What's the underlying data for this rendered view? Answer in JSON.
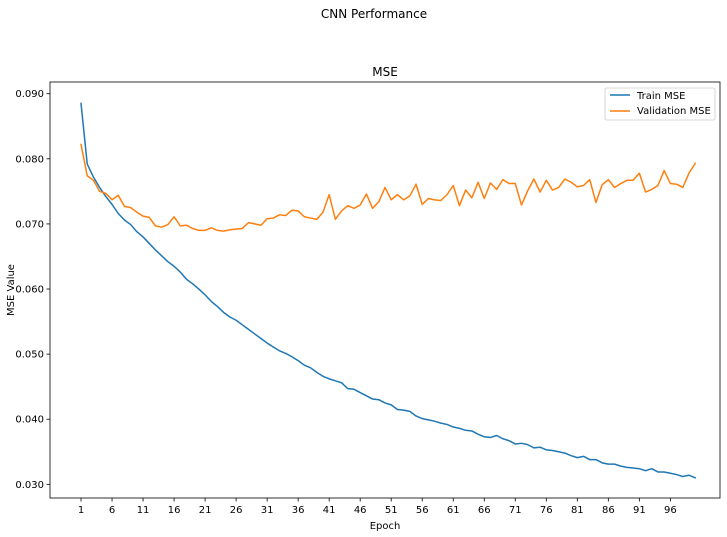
{
  "suptitle": "CNN Performance",
  "chart_data": {
    "type": "line",
    "title": "MSE",
    "xlabel": "Epoch",
    "ylabel": "MSE Value",
    "xlim": [
      -4,
      104
    ],
    "ylim": [
      0.0279,
      0.0918
    ],
    "x_ticks": [
      1,
      6,
      11,
      16,
      21,
      26,
      31,
      36,
      41,
      46,
      51,
      56,
      61,
      66,
      71,
      76,
      81,
      86,
      91,
      96
    ],
    "y_ticks": [
      0.03,
      0.04,
      0.05,
      0.06,
      0.07,
      0.08,
      0.09
    ],
    "y_tick_labels": [
      "0.030",
      "0.040",
      "0.050",
      "0.060",
      "0.070",
      "0.080",
      "0.090"
    ],
    "grid": false,
    "legend_position": "top-right",
    "x": [
      1,
      2,
      3,
      4,
      5,
      6,
      7,
      8,
      9,
      10,
      11,
      12,
      13,
      14,
      15,
      16,
      17,
      18,
      19,
      20,
      21,
      22,
      23,
      24,
      25,
      26,
      27,
      28,
      29,
      30,
      31,
      32,
      33,
      34,
      35,
      36,
      37,
      38,
      39,
      40,
      41,
      42,
      43,
      44,
      45,
      46,
      47,
      48,
      49,
      50,
      51,
      52,
      53,
      54,
      55,
      56,
      57,
      58,
      59,
      60,
      61,
      62,
      63,
      64,
      65,
      66,
      67,
      68,
      69,
      70,
      71,
      72,
      73,
      74,
      75,
      76,
      77,
      78,
      79,
      80,
      81,
      82,
      83,
      84,
      85,
      86,
      87,
      88,
      89,
      90,
      91,
      92,
      93,
      94,
      95,
      96,
      97,
      98,
      99,
      100
    ],
    "series": [
      {
        "name": "Train MSE",
        "color": "#1f77b4",
        "values": [
          0.0885,
          0.0792,
          0.0772,
          0.0756,
          0.0742,
          0.073,
          0.0716,
          0.0706,
          0.0699,
          0.0688,
          0.068,
          0.067,
          0.066,
          0.0651,
          0.0642,
          0.0635,
          0.0626,
          0.0615,
          0.0608,
          0.06,
          0.0591,
          0.0581,
          0.0573,
          0.0564,
          0.0557,
          0.0552,
          0.0545,
          0.0538,
          0.0531,
          0.0524,
          0.0517,
          0.0511,
          0.0505,
          0.0501,
          0.0496,
          0.049,
          0.0483,
          0.0479,
          0.0472,
          0.0466,
          0.0462,
          0.0459,
          0.0456,
          0.0447,
          0.0446,
          0.0441,
          0.0436,
          0.0431,
          0.043,
          0.0425,
          0.0422,
          0.0415,
          0.0414,
          0.0412,
          0.0405,
          0.0401,
          0.0399,
          0.0397,
          0.0394,
          0.0392,
          0.0388,
          0.0386,
          0.0383,
          0.0382,
          0.0377,
          0.0373,
          0.0372,
          0.0375,
          0.037,
          0.0367,
          0.0362,
          0.0363,
          0.0361,
          0.0356,
          0.0357,
          0.0353,
          0.0352,
          0.035,
          0.0348,
          0.0344,
          0.0341,
          0.0343,
          0.0338,
          0.0338,
          0.0333,
          0.0331,
          0.0331,
          0.0328,
          0.0326,
          0.0325,
          0.0324,
          0.0321,
          0.0324,
          0.0319,
          0.0319,
          0.0317,
          0.0315,
          0.0312,
          0.0314,
          0.031
        ]
      },
      {
        "name": "Validation MSE",
        "color": "#ff7f0e",
        "values": [
          0.0822,
          0.0774,
          0.0767,
          0.075,
          0.0747,
          0.0737,
          0.0744,
          0.0727,
          0.0725,
          0.0718,
          0.0712,
          0.071,
          0.0697,
          0.0695,
          0.0699,
          0.0711,
          0.0697,
          0.0698,
          0.0693,
          0.069,
          0.069,
          0.0694,
          0.069,
          0.0689,
          0.0691,
          0.0692,
          0.0693,
          0.0702,
          0.07,
          0.0698,
          0.0708,
          0.0709,
          0.0714,
          0.0713,
          0.0721,
          0.072,
          0.0711,
          0.0709,
          0.0707,
          0.0718,
          0.0745,
          0.0707,
          0.072,
          0.0728,
          0.0724,
          0.0729,
          0.0746,
          0.0724,
          0.0734,
          0.0756,
          0.0737,
          0.0745,
          0.0737,
          0.0743,
          0.0761,
          0.073,
          0.0739,
          0.0737,
          0.0736,
          0.0745,
          0.0759,
          0.0728,
          0.0752,
          0.074,
          0.0764,
          0.0739,
          0.0763,
          0.0753,
          0.0768,
          0.0762,
          0.0762,
          0.0729,
          0.0751,
          0.0769,
          0.0749,
          0.0767,
          0.0752,
          0.0756,
          0.0769,
          0.0764,
          0.0757,
          0.0759,
          0.0768,
          0.0733,
          0.076,
          0.0768,
          0.0756,
          0.0762,
          0.0767,
          0.0767,
          0.0778,
          0.0749,
          0.0753,
          0.0759,
          0.0782,
          0.0762,
          0.0761,
          0.0756,
          0.0778,
          0.0793
        ]
      }
    ]
  }
}
